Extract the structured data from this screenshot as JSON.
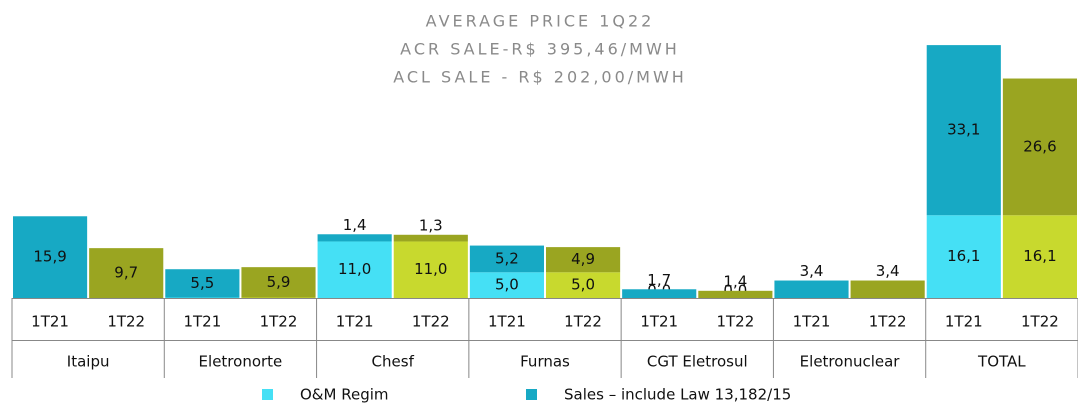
{
  "chart_data": {
    "type": "stacked_bar",
    "title": [
      "AVERAGE PRICE 1Q22",
      "ACR SALE-R$ 395,46/MWH",
      "ACL SALE - R$ 202,00/MWH"
    ],
    "groups": [
      "Itaipu",
      "Eletronorte",
      "Chesf",
      "Furnas",
      "CGT Eletrosul",
      "Eletronuclear",
      "TOTAL"
    ],
    "categories": [
      "1T21",
      "1T22",
      "1T21",
      "1T22",
      "1T21",
      "1T22",
      "1T21",
      "1T22",
      "1T21",
      "1T22",
      "1T21",
      "1T22",
      "1T21",
      "1T22"
    ],
    "series": [
      {
        "name": "O&M Regim",
        "color": "#45e0f5",
        "colors": [
          "#45e0f5",
          "#c8d92e"
        ],
        "values": [
          0,
          0,
          0.1,
          0.1,
          11,
          11,
          5,
          5,
          0,
          0,
          0,
          0,
          16.1,
          16.1
        ],
        "value_labels": [
          "0,0",
          "0,0",
          "0,1",
          "0,1",
          "11,0",
          "11,0",
          "5,0",
          "5,0",
          "0,0",
          "0,0",
          "0,0",
          "0,0",
          "16,1",
          "16,1"
        ]
      },
      {
        "name": "Sales – include Law 13,182/15",
        "color": "#17a9c4",
        "colors": [
          "#17a9c4",
          "#9aa521"
        ],
        "values": [
          15.9,
          9.7,
          5.5,
          5.9,
          1.4,
          1.3,
          5.2,
          4.9,
          1.7,
          1.4,
          3.4,
          3.4,
          33.1,
          26.6
        ],
        "value_labels": [
          "15,9",
          "9,7",
          "5,5",
          "5,9",
          "1,4",
          "1,3",
          "5,2",
          "4,9",
          "1,7",
          "1,4",
          "3,4",
          "3,4",
          "33,1",
          "26,6"
        ]
      }
    ],
    "ylim": [
      0,
      50
    ]
  }
}
